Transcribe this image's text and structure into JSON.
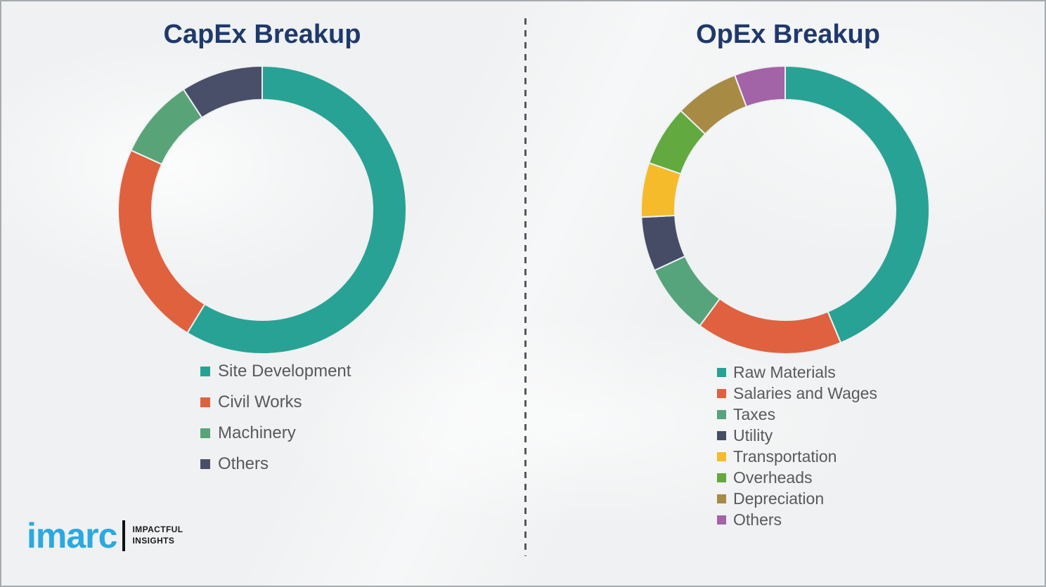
{
  "page": {
    "background_color": "#eff1f2",
    "frame_border_color": "#a6abaf",
    "title_color": "#20396b",
    "legend_text_color": "#58595b"
  },
  "divider": {
    "orientation": "vertical",
    "style": "dashed",
    "color": "#54585c"
  },
  "logo": {
    "brand": "imarc",
    "brand_color": "#2ba9e0",
    "tagline_line1": "IMPACTFUL",
    "tagline_line2": "INSIGHTS"
  },
  "chart_data": [
    {
      "type": "pie",
      "variant": "donut",
      "title": "CapEx Breakup",
      "legend_position": "below-left",
      "direction": "clockwise",
      "start_angle_deg": 0,
      "values_are_percent_estimates": true,
      "segments": [
        {
          "label": "Site Development",
          "value": 58.7,
          "color": "#28a294"
        },
        {
          "label": "Civil Works",
          "value": 23.1,
          "color": "#e0613d"
        },
        {
          "label": "Machinery",
          "value": 9.0,
          "color": "#58a478"
        },
        {
          "label": "Others",
          "value": 9.2,
          "color": "#4a4f69"
        }
      ]
    },
    {
      "type": "pie",
      "variant": "donut",
      "title": "OpEx Breakup",
      "legend_position": "below-left",
      "direction": "clockwise",
      "start_angle_deg": 0,
      "values_are_percent_estimates": true,
      "segments": [
        {
          "label": "Raw Materials",
          "value": 43.7,
          "color": "#28a294"
        },
        {
          "label": "Salaries and Wages",
          "value": 16.4,
          "color": "#df6140"
        },
        {
          "label": "Taxes",
          "value": 8.0,
          "color": "#55a47c"
        },
        {
          "label": "Utility",
          "value": 6.1,
          "color": "#474c66"
        },
        {
          "label": "Transportation",
          "value": 6.1,
          "color": "#f5bb2b"
        },
        {
          "label": "Overheads",
          "value": 6.8,
          "color": "#62a93f"
        },
        {
          "label": "Depreciation",
          "value": 7.2,
          "color": "#a78b45"
        },
        {
          "label": "Others",
          "value": 5.7,
          "color": "#a263a7"
        }
      ]
    }
  ]
}
